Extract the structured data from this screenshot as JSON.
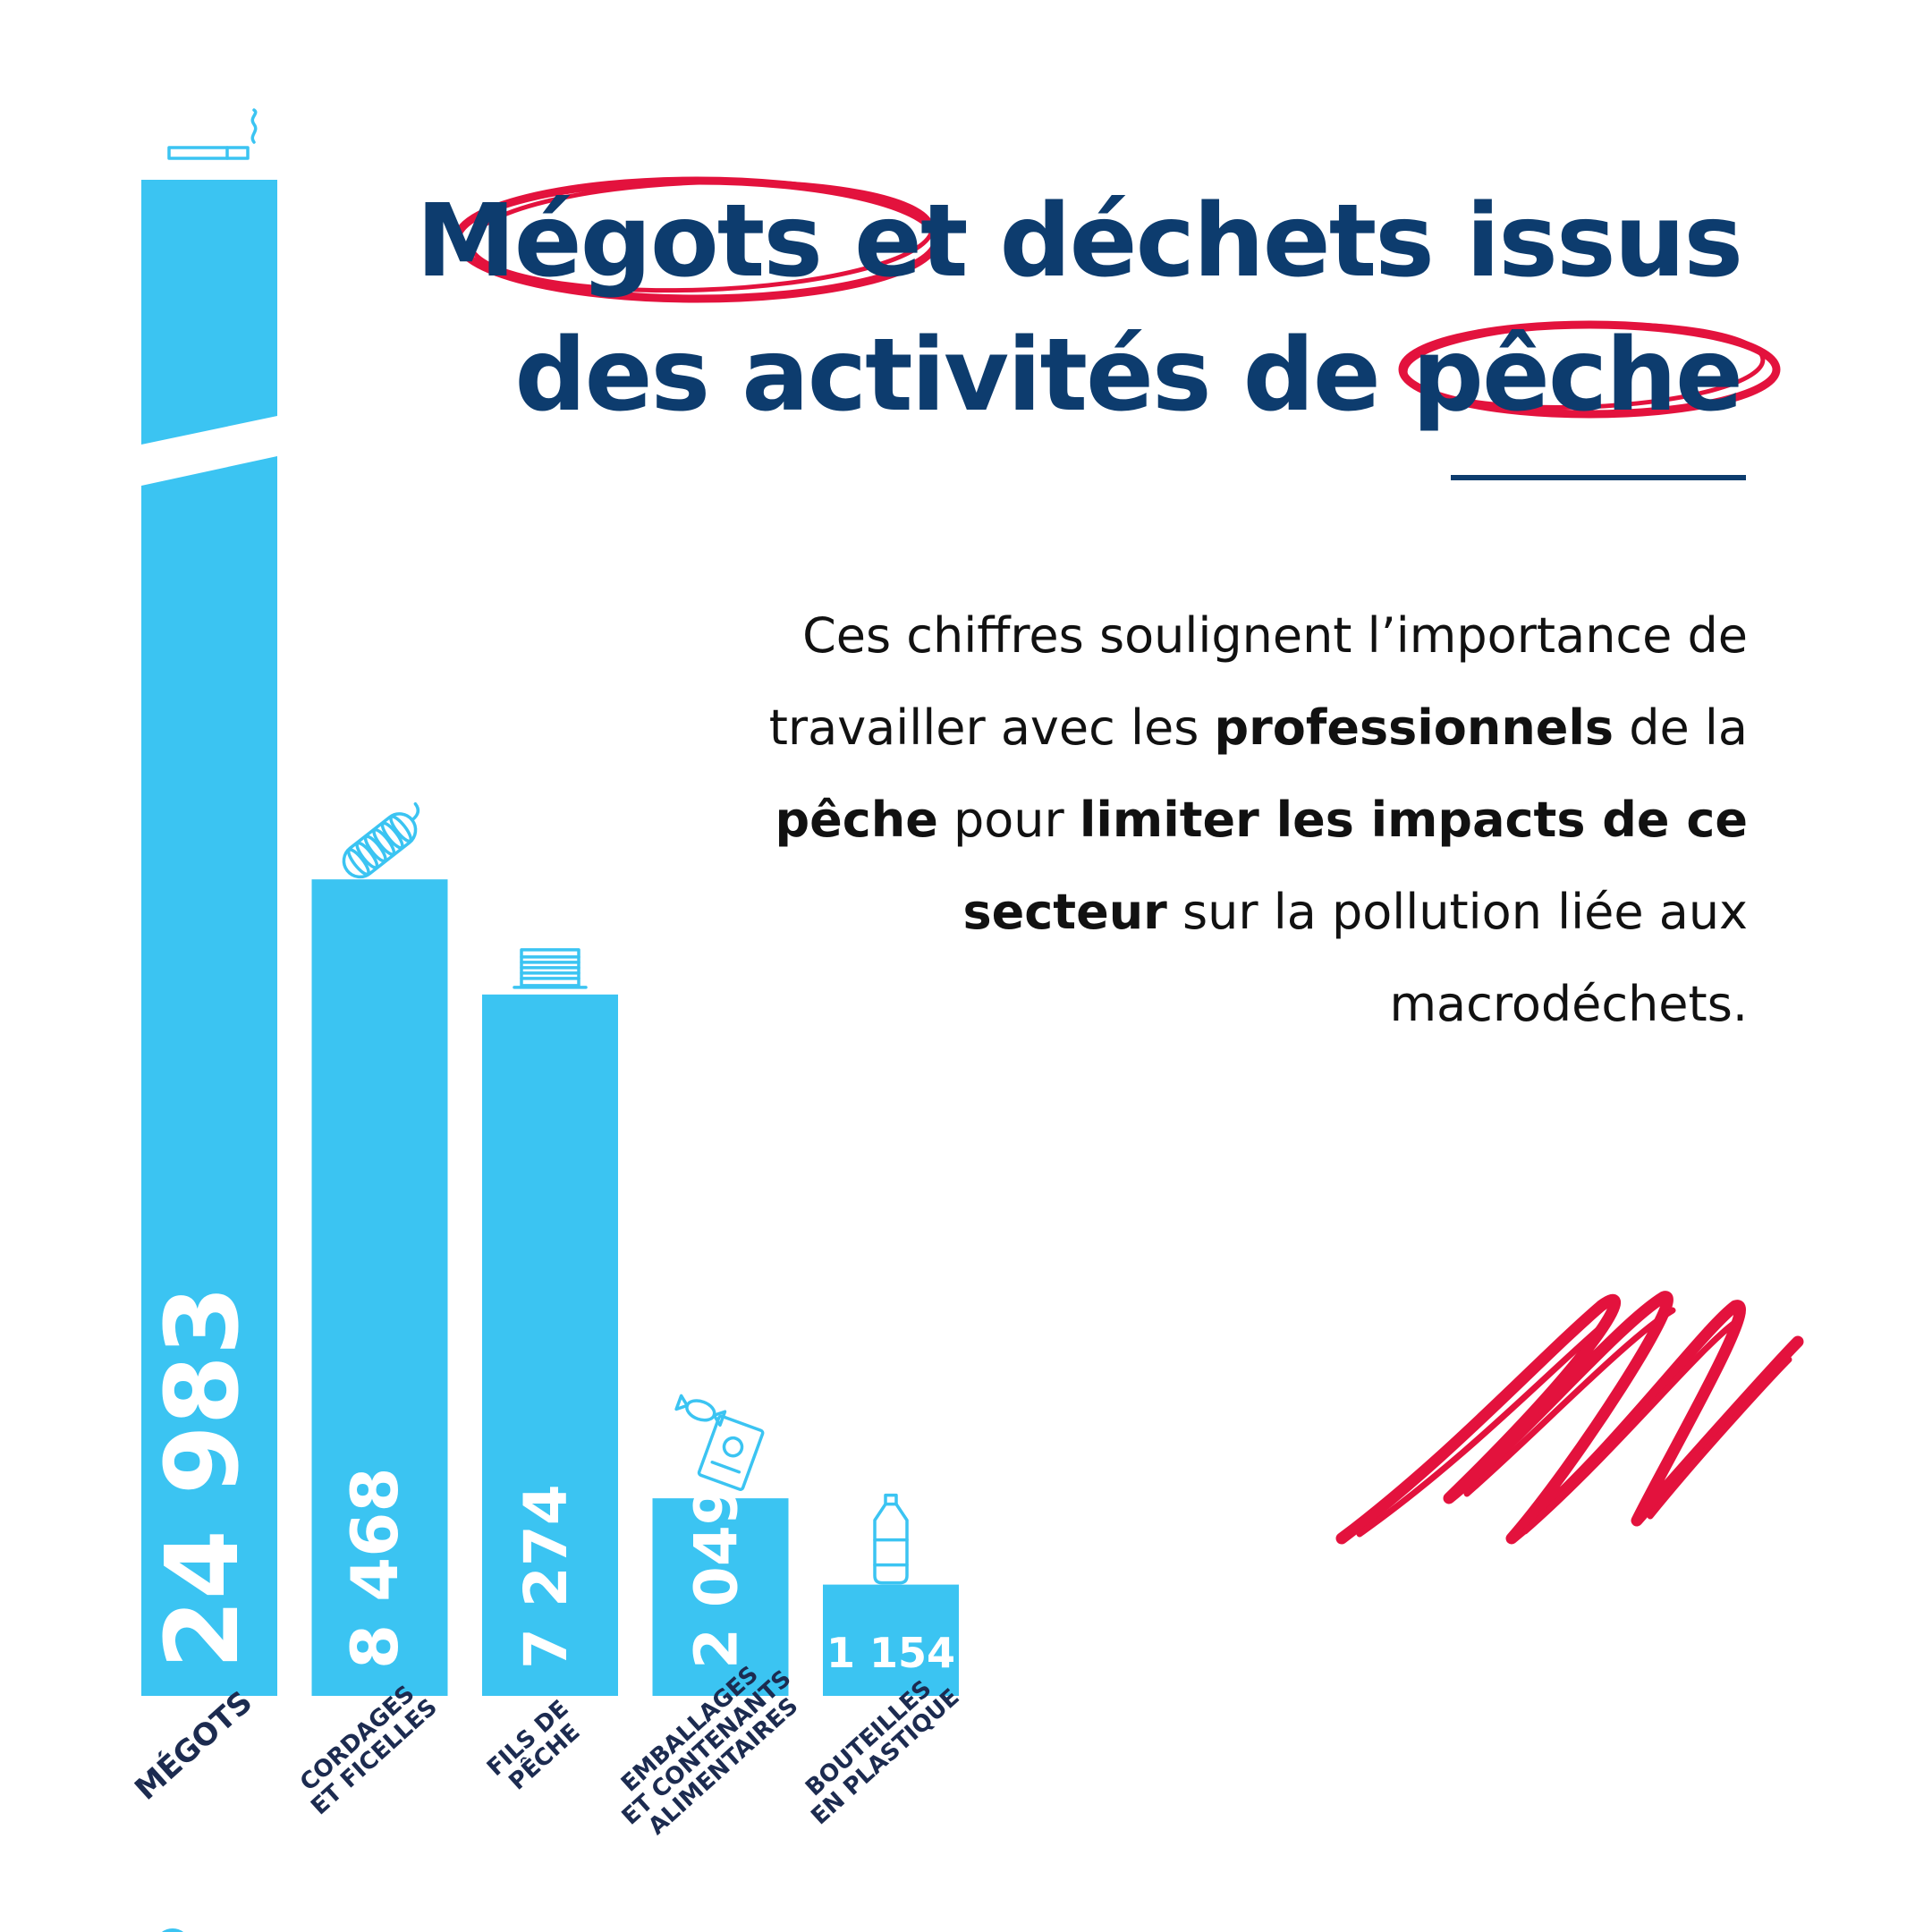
{
  "title": {
    "part1_highlight": "Mégots",
    "part1_rest": " et déchets issus",
    "part2_rest": "des activités de ",
    "part2_highlight": "pêche"
  },
  "description": {
    "s1": "Ces chiffres soulignent l’importance de travailler avec les ",
    "b1": "professionnels",
    "s2": " de la ",
    "b2": "pêche",
    "s3": " pour ",
    "b3": "limiter les impacts de ce secteur",
    "s4": " sur la pollution liée aux macrodéchets."
  },
  "colors": {
    "bar": "#3bc4f2",
    "title": "#0d3c6e",
    "accent": "#e3123d",
    "label": "#1c2b50"
  },
  "chart_data": {
    "type": "bar",
    "axis_break": true,
    "categories": [
      {
        "lines": [
          "MÉGOTS"
        ],
        "icon": "cigarette-icon"
      },
      {
        "lines": [
          "CORDAGES",
          "ET FICELLES"
        ],
        "icon": "rope-icon"
      },
      {
        "lines": [
          "FILS DE",
          "PÊCHE"
        ],
        "icon": "fishing-line-spool-icon"
      },
      {
        "lines": [
          "EMBALLAGES",
          "ET CONTENANTS",
          "ALIMENTAIRES"
        ],
        "icon": "food-packaging-icon"
      },
      {
        "lines": [
          "BOUTEILLES",
          "EN PLASTIQUE"
        ],
        "icon": "plastic-bottle-icon"
      }
    ],
    "values": [
      24983,
      8468,
      7274,
      2049,
      1154
    ],
    "value_labels": [
      "24 983",
      "8 468",
      "7 274",
      "2 049",
      "1 154"
    ]
  }
}
